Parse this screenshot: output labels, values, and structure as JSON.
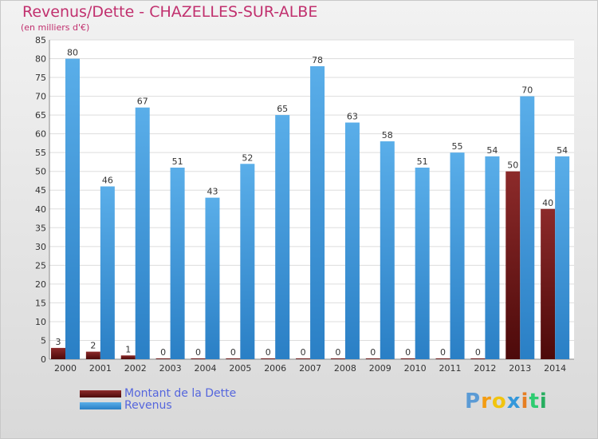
{
  "chart_data": {
    "type": "bar",
    "title": "Revenus/Dette - CHAZELLES-SUR-ALBE",
    "subtitle": "(en milliers d'€)",
    "categories": [
      "2000",
      "2001",
      "2002",
      "2003",
      "2004",
      "2005",
      "2006",
      "2007",
      "2008",
      "2009",
      "2010",
      "2011",
      "2012",
      "2013",
      "2014"
    ],
    "series": [
      {
        "name": "Montant de la Dette",
        "values": [
          3,
          2,
          1,
          0,
          0,
          0,
          0,
          0,
          0,
          0,
          0,
          0,
          0,
          50,
          40
        ],
        "color": "#7b1a1a"
      },
      {
        "name": "Revenus",
        "values": [
          80,
          46,
          67,
          51,
          43,
          52,
          65,
          78,
          63,
          58,
          51,
          55,
          54,
          70,
          54
        ],
        "color": "#4da6e8"
      }
    ],
    "ylim": [
      0,
      85
    ],
    "yticks": [
      0,
      5,
      10,
      15,
      20,
      25,
      30,
      35,
      40,
      45,
      50,
      55,
      60,
      65,
      70,
      75,
      80,
      85
    ],
    "grid": true,
    "legend_position": "bottom-left"
  },
  "logo": {
    "text": "Proxiti"
  }
}
